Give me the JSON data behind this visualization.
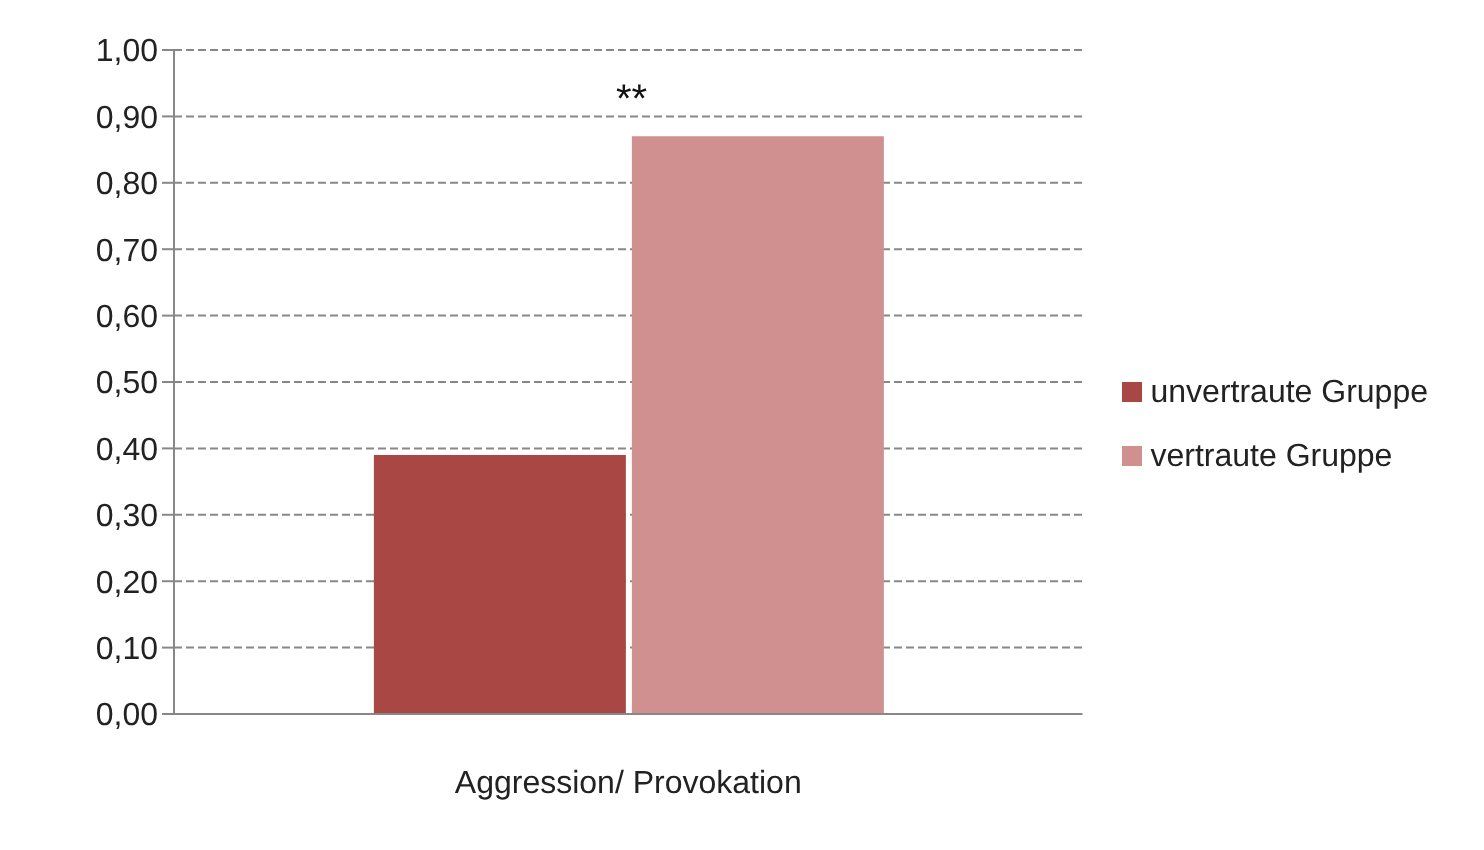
{
  "chart_data": {
    "type": "bar",
    "categories": [
      "Aggression/ Provokation"
    ],
    "series": [
      {
        "name": "unvertraute Gruppe",
        "color": "#a94745",
        "values": [
          0.39
        ]
      },
      {
        "name": "vertraute Gruppe",
        "color": "#d09090",
        "values": [
          0.87
        ]
      }
    ],
    "ylim": [
      0,
      1
    ],
    "yticks": [
      {
        "value": 0,
        "label": "0,00"
      },
      {
        "value": 0.1,
        "label": "0,10"
      },
      {
        "value": 0.2,
        "label": "0,20"
      },
      {
        "value": 0.3,
        "label": "0,30"
      },
      {
        "value": 0.4,
        "label": "0,40"
      },
      {
        "value": 0.5,
        "label": "0,50"
      },
      {
        "value": 0.6,
        "label": "0,60"
      },
      {
        "value": 0.7,
        "label": "0,70"
      },
      {
        "value": 0.8,
        "label": "0,80"
      },
      {
        "value": 0.9,
        "label": "0,90"
      },
      {
        "value": 1,
        "label": "1,00"
      }
    ],
    "grid": "y",
    "legend": "right",
    "annotations": [
      "**"
    ]
  }
}
